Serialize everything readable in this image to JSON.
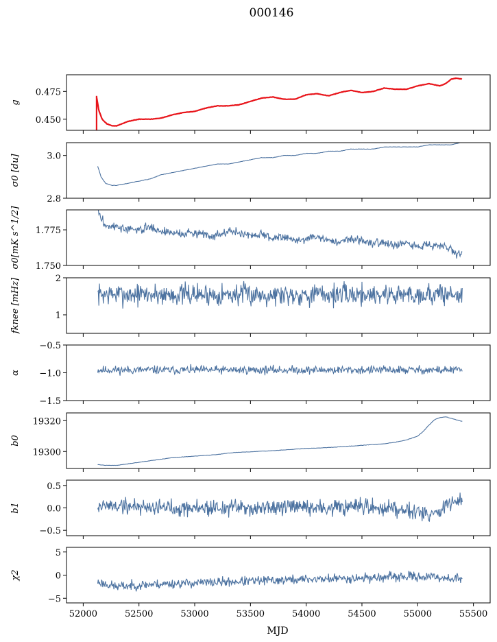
{
  "figure": {
    "title": "000146",
    "xlabel": "MJD"
  },
  "chart_data": [
    {
      "type": "line",
      "ylabel": "g",
      "ylim": [
        0.44,
        0.49
      ],
      "yticks": [
        0.45,
        0.475
      ],
      "ytick_labels": [
        "0.450",
        "0.475"
      ],
      "xlim": [
        51850,
        55650
      ],
      "series": [
        {
          "color": "#e8141a",
          "style": "trend",
          "x": [
            52120,
            52140,
            52170,
            52210,
            52260,
            52300,
            52400,
            52500,
            52600,
            52700,
            52800,
            52900,
            53000,
            53100,
            53200,
            53300,
            53400,
            53500,
            53600,
            53700,
            53800,
            53900,
            54000,
            54100,
            54200,
            54300,
            54400,
            54500,
            54600,
            54700,
            54800,
            54900,
            55000,
            55100,
            55150,
            55200,
            55250,
            55300,
            55350,
            55400
          ],
          "y": [
            0.47,
            0.458,
            0.45,
            0.446,
            0.444,
            0.444,
            0.448,
            0.45,
            0.45,
            0.451,
            0.454,
            0.456,
            0.457,
            0.46,
            0.462,
            0.462,
            0.463,
            0.466,
            0.469,
            0.47,
            0.468,
            0.468,
            0.472,
            0.473,
            0.471,
            0.474,
            0.476,
            0.474,
            0.475,
            0.478,
            0.477,
            0.477,
            0.48,
            0.482,
            0.481,
            0.48,
            0.482,
            0.486,
            0.487,
            0.486
          ]
        }
      ]
    },
    {
      "type": "line",
      "ylabel": "σ0 [du]",
      "ylim": [
        2.8,
        3.06
      ],
      "yticks": [
        2.8,
        3.0
      ],
      "ytick_labels": [
        "2.8",
        "3.0"
      ],
      "xlim": [
        51850,
        55650
      ],
      "series": [
        {
          "color": "#4c72a0",
          "style": "trend",
          "x": [
            52130,
            52160,
            52200,
            52260,
            52300,
            52400,
            52500,
            52600,
            52700,
            52800,
            52900,
            53000,
            53100,
            53200,
            53300,
            53400,
            53500,
            53600,
            53700,
            53800,
            53900,
            54000,
            54100,
            54200,
            54300,
            54400,
            54500,
            54600,
            54700,
            54800,
            54900,
            55000,
            55100,
            55200,
            55300,
            55380
          ],
          "y": [
            2.95,
            2.9,
            2.87,
            2.86,
            2.86,
            2.87,
            2.88,
            2.89,
            2.91,
            2.92,
            2.93,
            2.94,
            2.95,
            2.96,
            2.96,
            2.97,
            2.98,
            2.99,
            2.99,
            3.0,
            3.0,
            3.01,
            3.01,
            3.02,
            3.02,
            3.03,
            3.03,
            3.03,
            3.04,
            3.04,
            3.04,
            3.04,
            3.05,
            3.05,
            3.05,
            3.06
          ]
        }
      ]
    },
    {
      "type": "line",
      "ylabel": "σ0[mK s^1/2]",
      "ylim": [
        1.75,
        1.789
      ],
      "yticks": [
        1.75,
        1.775
      ],
      "ytick_labels": [
        "1.750",
        "1.775"
      ],
      "xlim": [
        51850,
        55650
      ],
      "series": [
        {
          "color": "#4c72a0",
          "style": "noisy",
          "noise": 0.0022,
          "seed": 3,
          "x": [
            52130,
            52160,
            52200,
            52300,
            52400,
            52500,
            52600,
            52700,
            52800,
            52900,
            53000,
            53100,
            53200,
            53300,
            53400,
            53500,
            53600,
            53700,
            53800,
            53900,
            54000,
            54100,
            54200,
            54300,
            54400,
            54500,
            54600,
            54700,
            54800,
            54900,
            55000,
            55100,
            55200,
            55300,
            55350,
            55400
          ],
          "y": [
            1.789,
            1.783,
            1.778,
            1.777,
            1.775,
            1.775,
            1.777,
            1.774,
            1.773,
            1.772,
            1.773,
            1.772,
            1.771,
            1.774,
            1.773,
            1.771,
            1.772,
            1.769,
            1.771,
            1.767,
            1.769,
            1.77,
            1.768,
            1.766,
            1.769,
            1.768,
            1.765,
            1.767,
            1.764,
            1.765,
            1.763,
            1.765,
            1.764,
            1.762,
            1.758,
            1.758
          ]
        }
      ]
    },
    {
      "type": "line",
      "ylabel": "fknee [mHz]",
      "ylim": [
        0.5,
        2.0
      ],
      "yticks": [
        1,
        2
      ],
      "ytick_labels": [
        "1",
        "2"
      ],
      "xlim": [
        51850,
        55650
      ],
      "series": [
        {
          "color": "#4c72a0",
          "style": "noisy",
          "noise": 0.22,
          "seed": 7,
          "x": [
            52130,
            55400
          ],
          "y": [
            1.55,
            1.55
          ]
        }
      ]
    },
    {
      "type": "line",
      "ylabel": "α",
      "ylim": [
        -1.5,
        -0.5
      ],
      "yticks": [
        -1.5,
        -1.0,
        -0.5
      ],
      "ytick_labels": [
        "−1.5",
        "−1.0",
        "−0.5"
      ],
      "xlim": [
        51850,
        55650
      ],
      "series": [
        {
          "color": "#4c72a0",
          "style": "noisy",
          "noise": 0.055,
          "seed": 11,
          "x": [
            52130,
            55400
          ],
          "y": [
            -0.95,
            -0.95
          ]
        }
      ]
    },
    {
      "type": "line",
      "ylabel": "b0",
      "ylim": [
        19289,
        19325
      ],
      "yticks": [
        19300,
        19320
      ],
      "ytick_labels": [
        "19300",
        "19320"
      ],
      "xlim": [
        51850,
        55650
      ],
      "series": [
        {
          "color": "#4c72a0",
          "style": "trend",
          "x": [
            52130,
            52200,
            52300,
            52400,
            52500,
            52600,
            52700,
            52800,
            52900,
            53000,
            53100,
            53200,
            53300,
            53400,
            53500,
            53600,
            53700,
            53800,
            53900,
            54000,
            54100,
            54200,
            54300,
            54400,
            54500,
            54600,
            54700,
            54800,
            54900,
            55000,
            55050,
            55100,
            55150,
            55200,
            55250,
            55300,
            55350,
            55400
          ],
          "y": [
            19291.5,
            19291.0,
            19291.0,
            19292.0,
            19293.0,
            19294.0,
            19295.0,
            19296.0,
            19296.5,
            19297.0,
            19297.5,
            19298.0,
            19299.0,
            19299.5,
            19299.8,
            19300.2,
            19300.5,
            19301.0,
            19301.5,
            19302.0,
            19302.2,
            19302.6,
            19303.0,
            19303.5,
            19304.0,
            19304.5,
            19305.0,
            19306.0,
            19307.5,
            19310.0,
            19313.0,
            19317.0,
            19320.5,
            19322.0,
            19322.5,
            19321.5,
            19320.5,
            19319.5
          ]
        }
      ]
    },
    {
      "type": "line",
      "ylabel": "b1",
      "ylim": [
        -0.62,
        0.62
      ],
      "yticks": [
        -0.5,
        0.0,
        0.5
      ],
      "ytick_labels": [
        "−0.5",
        "0.0",
        "0.5"
      ],
      "xlim": [
        51850,
        55650
      ],
      "series": [
        {
          "color": "#4c72a0",
          "style": "noisy",
          "noise": 0.14,
          "seed": 19,
          "x": [
            52130,
            53000,
            54000,
            54800,
            55000,
            55100,
            55200,
            55300,
            55400
          ],
          "y": [
            0.05,
            0.0,
            0.0,
            0.0,
            -0.05,
            -0.15,
            -0.05,
            0.1,
            0.15
          ]
        }
      ]
    },
    {
      "type": "line",
      "ylabel": "χ2",
      "ylim": [
        -6.0,
        6.0
      ],
      "yticks": [
        -5,
        0,
        5
      ],
      "ytick_labels": [
        "−5",
        "0",
        "5"
      ],
      "xlim": [
        51850,
        55650
      ],
      "series": [
        {
          "color": "#4c72a0",
          "style": "noisy",
          "noise": 0.75,
          "seed": 23,
          "x": [
            52130,
            52300,
            52600,
            53000,
            53500,
            54000,
            54500,
            55000,
            55400
          ],
          "y": [
            -1.5,
            -2.5,
            -2.0,
            -1.7,
            -1.3,
            -0.9,
            -0.6,
            -0.3,
            -0.8
          ]
        }
      ]
    }
  ],
  "xaxis": {
    "ticks": [
      52000,
      52500,
      53000,
      53500,
      54000,
      54500,
      55000,
      55500
    ],
    "tick_labels": [
      "52000",
      "52500",
      "53000",
      "53500",
      "54000",
      "54500",
      "55000",
      "55500"
    ]
  }
}
